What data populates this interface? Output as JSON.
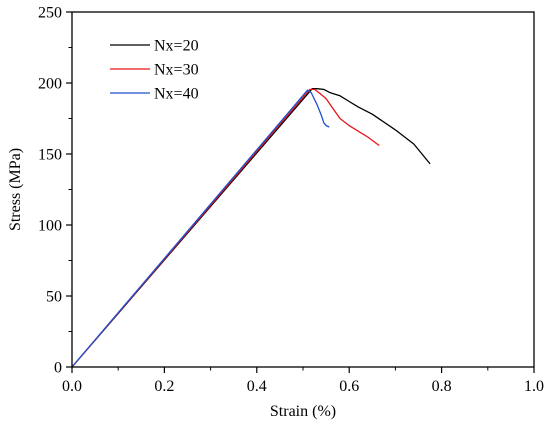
{
  "chart_data": {
    "type": "line",
    "title": "",
    "xlabel": "Strain (%)",
    "ylabel": "Stress (MPa)",
    "xlim": [
      0,
      1.0
    ],
    "ylim": [
      0,
      250
    ],
    "x_ticks": [
      "0.0",
      "0.2",
      "0.4",
      "0.6",
      "0.8",
      "1.0"
    ],
    "y_ticks": [
      "0",
      "50",
      "100",
      "150",
      "200",
      "250"
    ],
    "grid": false,
    "legend_position": "top-left",
    "series": [
      {
        "name": "Nx=20",
        "color": "#000000",
        "x": [
          0.0,
          0.52,
          0.53,
          0.545,
          0.56,
          0.58,
          0.6,
          0.62,
          0.65,
          0.7,
          0.74,
          0.775
        ],
        "y": [
          0,
          196,
          196,
          195.5,
          193,
          191,
          187,
          183,
          178,
          167,
          157,
          143
        ]
      },
      {
        "name": "Nx=30",
        "color": "#e8141c",
        "x": [
          0.0,
          0.515,
          0.525,
          0.535,
          0.55,
          0.565,
          0.58,
          0.6,
          0.62,
          0.64,
          0.665
        ],
        "y": [
          0,
          195.5,
          195.5,
          193,
          189,
          182,
          175,
          170,
          166,
          162,
          156
        ]
      },
      {
        "name": "Nx=40",
        "color": "#1f4fcf",
        "x": [
          0.0,
          0.51,
          0.518,
          0.53,
          0.54,
          0.545,
          0.55,
          0.557
        ],
        "y": [
          0,
          195,
          193,
          185,
          177,
          172,
          170,
          169
        ]
      }
    ]
  }
}
